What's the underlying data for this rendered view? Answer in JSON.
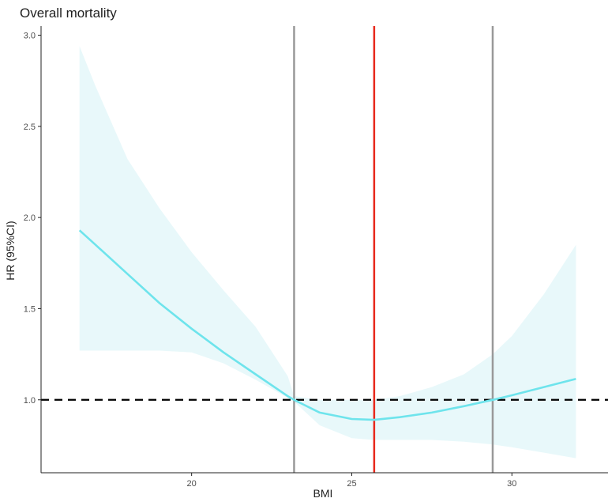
{
  "chart_data": {
    "type": "line",
    "title": "Overall mortality",
    "xlabel": "BMI",
    "ylabel": "HR (95%CI)",
    "xlim": [
      15.3,
      33
    ],
    "ylim": [
      0.6,
      3.05
    ],
    "x_ticks": [
      20,
      25,
      30
    ],
    "y_ticks": [
      1.0,
      1.5,
      2.0,
      2.5,
      3.0
    ],
    "y_tick_labels": [
      "1.0",
      "1.5",
      "2.0",
      "2.5",
      "3.0"
    ],
    "grid": false,
    "series": [
      {
        "x": [
          16.5,
          17,
          18,
          19,
          20,
          21,
          22,
          23,
          23.2,
          24,
          25,
          25.7,
          26.5,
          27.5,
          28.5,
          29.4,
          30,
          31,
          32
        ],
        "y": [
          1.93,
          1.85,
          1.69,
          1.53,
          1.39,
          1.26,
          1.14,
          1.02,
          1.0,
          0.93,
          0.895,
          0.89,
          0.905,
          0.93,
          0.965,
          1.0,
          1.025,
          1.07,
          1.115
        ],
        "ci_lower": [
          1.27,
          1.27,
          1.27,
          1.27,
          1.26,
          1.2,
          1.11,
          1.01,
          0.99,
          0.86,
          0.79,
          0.78,
          0.78,
          0.78,
          0.77,
          0.755,
          0.74,
          0.71,
          0.68
        ],
        "ci_upper": [
          2.94,
          2.72,
          2.32,
          2.05,
          1.81,
          1.6,
          1.4,
          1.13,
          1.02,
          1.0,
          1.0,
          1.0,
          1.02,
          1.07,
          1.14,
          1.25,
          1.35,
          1.58,
          1.85
        ],
        "color": "#6EE4EC",
        "ci_color": "#E8F8FA"
      }
    ],
    "reference_line": {
      "y": 1.0,
      "style": "dashed",
      "color": "#000000"
    },
    "vertical_lines": [
      {
        "x": 23.2,
        "color": "#999999"
      },
      {
        "x": 25.7,
        "color": "#E8291C"
      },
      {
        "x": 29.4,
        "color": "#999999"
      }
    ]
  }
}
